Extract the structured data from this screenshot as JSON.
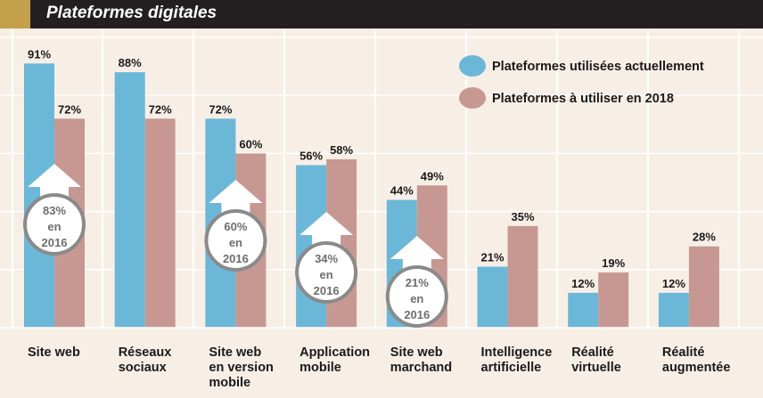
{
  "header": {
    "title": "Plateformes digitales"
  },
  "colors": {
    "current": "#6bb7d8",
    "future": "#c79892",
    "title_bar": "#231f20",
    "title_accent": "#c5a04c",
    "background": "#f7efe6",
    "grid": "#ffffff",
    "circle": "#8a8a8a",
    "circle_text": "#6d6d6d",
    "arrow": "#ffffff"
  },
  "chart_data": {
    "type": "bar",
    "title": "Plateformes digitales",
    "categories": [
      [
        "Site web"
      ],
      [
        "Réseaux",
        "sociaux"
      ],
      [
        "Site web",
        "en version",
        "mobile"
      ],
      [
        "Application",
        "mobile"
      ],
      [
        "Site web",
        "marchand"
      ],
      [
        "Intelligence",
        "artificielle"
      ],
      [
        "Réalité",
        "virtuelle"
      ],
      [
        "Réalité",
        "augmentée"
      ]
    ],
    "series": [
      {
        "name": "Plateformes utilisées actuellement",
        "values": [
          91,
          88,
          72,
          56,
          44,
          21,
          12,
          12
        ],
        "color": "#6bb7d8"
      },
      {
        "name": "Plateformes à utiliser en 2018",
        "values": [
          72,
          72,
          60,
          58,
          49,
          35,
          19,
          28
        ],
        "color": "#c79892"
      }
    ],
    "value_suffix": "%",
    "ylim": [
      0,
      100
    ],
    "grid": true,
    "legend_position": "top-right",
    "annotations": [
      {
        "category_index": 0,
        "lines": [
          "83%",
          "en",
          "2016"
        ]
      },
      {
        "category_index": 2,
        "lines": [
          "60%",
          "en",
          "2016"
        ]
      },
      {
        "category_index": 3,
        "lines": [
          "34%",
          "en",
          "2016"
        ]
      },
      {
        "category_index": 4,
        "lines": [
          "21%",
          "en",
          "2016"
        ]
      }
    ]
  }
}
